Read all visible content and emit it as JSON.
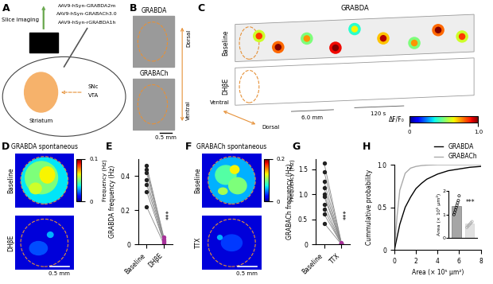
{
  "panels": {
    "A": {
      "label": "A",
      "vectors": [
        "AAV9-hSyn-GRABDA2m",
        "AAV9-hSyn-GRABACh3.0",
        "AAV9-hSyn-rGRABDA1h"
      ],
      "method": "Slice imaging",
      "regions": {
        "target": "Striatum",
        "source": [
          "SNc",
          "VTA"
        ]
      }
    },
    "B": {
      "label": "B",
      "images": [
        "GRABDA",
        "GRABACh"
      ],
      "axis": {
        "top": "Dorsal",
        "bottom": "Ventral"
      },
      "scale_bar": "0.5 mm"
    },
    "C": {
      "label": "C",
      "title": "GRABDA",
      "rows": [
        "Baseline",
        "DHβE"
      ],
      "depth": "6.0 mm",
      "duration": "120 s",
      "axis": {
        "start": "Ventral",
        "end": "Dorsal"
      },
      "colorbar": {
        "label": "ΔF/F₀",
        "range": [
          0,
          1.0
        ],
        "ticks": [
          0,
          1.0
        ]
      }
    },
    "D": {
      "label": "D",
      "title": "GRABDA spontaneous",
      "rows": [
        "Baseline",
        "DHβE"
      ],
      "colorbar": {
        "label": "Frequency (Hz)",
        "range": [
          0,
          0.1
        ],
        "ticks": [
          0,
          0.1
        ]
      },
      "scale_bar": "0.5 mm"
    },
    "F": {
      "label": "F",
      "title": "GRABACh spontaneous",
      "rows": [
        "Baseline",
        "TTX"
      ],
      "colorbar": {
        "label": "Frequency (Hz)",
        "range": [
          0,
          0.2
        ],
        "ticks": [
          0,
          0.2
        ]
      },
      "scale_bar": "0.5 mm"
    }
  },
  "chart_data": [
    {
      "panel": "E",
      "type": "paired",
      "categories": [
        "Baseline",
        "DHβE"
      ],
      "colors": [
        "#222222",
        "#a8329b"
      ],
      "ylabel": "GRABDA frequency (Hz)",
      "ylim": [
        0,
        0.5
      ],
      "yticks": [
        0,
        0.2,
        0.4
      ],
      "annotation": "***",
      "series": [
        {
          "values": [
            0.46,
            0.04
          ]
        },
        {
          "values": [
            0.44,
            0.03
          ]
        },
        {
          "values": [
            0.42,
            0.02
          ]
        },
        {
          "values": [
            0.38,
            0.02
          ]
        },
        {
          "values": [
            0.35,
            0.01
          ]
        },
        {
          "values": [
            0.31,
            0.01
          ]
        },
        {
          "values": [
            0.22,
            0.0
          ]
        }
      ]
    },
    {
      "panel": "G",
      "type": "paired",
      "categories": [
        "Baseline",
        "TTX"
      ],
      "colors": [
        "#222222",
        "#a8329b"
      ],
      "ylabel": "GRABACh frequency (Hz)",
      "ylim": [
        0,
        1.7
      ],
      "yticks": [
        0,
        0.5,
        1.0,
        1.5
      ],
      "annotation": "***",
      "series": [
        {
          "values": [
            1.62,
            0.03
          ]
        },
        {
          "values": [
            1.45,
            0.02
          ]
        },
        {
          "values": [
            1.25,
            0.02
          ]
        },
        {
          "values": [
            1.12,
            0.01
          ]
        },
        {
          "values": [
            1.0,
            0.01
          ]
        },
        {
          "values": [
            0.95,
            0.02
          ]
        },
        {
          "values": [
            0.8,
            0.01
          ]
        },
        {
          "values": [
            0.7,
            0.0
          ]
        },
        {
          "values": [
            0.6,
            0.01
          ]
        },
        {
          "values": [
            0.42,
            0.0
          ]
        }
      ]
    },
    {
      "panel": "H",
      "type": "line",
      "xlabel": "Area (× 10⁵ μm²)",
      "ylabel": "Cummulative probability",
      "xlim": [
        0,
        8
      ],
      "xticks": [
        0,
        2,
        4,
        6,
        8
      ],
      "ylim": [
        0,
        1.0
      ],
      "yticks": [
        0,
        0.5,
        1.0
      ],
      "legend": "upper right",
      "series": [
        {
          "name": "GRABDA",
          "color": "#000000",
          "x": [
            0,
            0.25,
            0.5,
            1,
            1.5,
            2,
            2.5,
            3,
            4,
            5,
            6,
            7,
            8
          ],
          "values": [
            0,
            0.15,
            0.3,
            0.5,
            0.62,
            0.72,
            0.78,
            0.83,
            0.89,
            0.93,
            0.95,
            0.97,
            0.98
          ]
        },
        {
          "name": "GRABACh",
          "color": "#aaaaaa",
          "x": [
            0,
            0.25,
            0.5,
            1,
            1.5,
            2,
            2.5,
            3,
            4,
            5,
            6,
            7,
            8
          ],
          "values": [
            0,
            0.4,
            0.7,
            0.9,
            0.96,
            0.98,
            0.99,
            0.995,
            1.0,
            1.0,
            1.0,
            1.0,
            1.0
          ]
        }
      ],
      "inset": {
        "type": "bar",
        "ylabel": "Area (× 10⁵ μm²)",
        "ylim": [
          0,
          2
        ],
        "yticks": [
          0,
          1,
          2
        ],
        "values": [
          1.35,
          0.6
        ],
        "colors": [
          "#000000",
          "#aaaaaa"
        ],
        "points": [
          [
            1.0,
            1.1,
            1.2,
            1.3,
            1.4,
            1.5,
            1.6,
            1.8
          ],
          [
            0.45,
            0.5,
            0.55,
            0.6,
            0.65,
            0.7
          ]
        ],
        "annotation": "***"
      }
    }
  ]
}
